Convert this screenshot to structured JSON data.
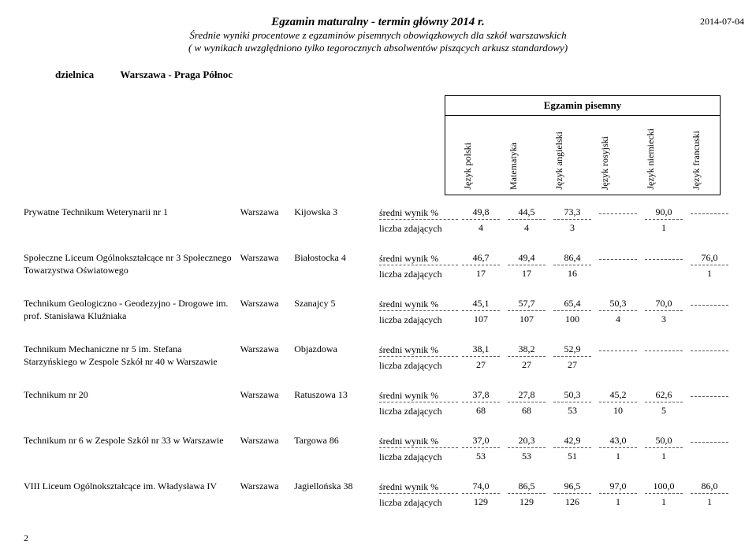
{
  "header": {
    "title_main": "Egzamin maturalny - termin główny 2014 r.",
    "title_sub1": "Średnie wyniki procentowe z egzaminów pisemnych obowiązkowych dla szkół warszawskich",
    "title_sub2": "( w wynikach uwzględniono tylko tegorocznych absolwentów piszących arkusz standardowy)",
    "date": "2014-07-04",
    "district_label": "dzielnica",
    "district_name": "Warszawa - Praga Północ",
    "exam_section": "Egzamin pisemny"
  },
  "columns": [
    "Język polski",
    "Matematyka",
    "Język angielski",
    "Język rosyjski",
    "Język niemiecki",
    "Język francuski"
  ],
  "label_avg": "średni wynik %",
  "label_count": "liczba zdających",
  "schools": [
    {
      "name": "Prywatne Technikum Weterynarii nr 1",
      "city": "Warszawa",
      "street": "Kijowska 3",
      "avg": [
        "49,8",
        "44,5",
        "73,3",
        "",
        "90,0",
        ""
      ],
      "count": [
        "4",
        "4",
        "3",
        "",
        "1",
        ""
      ]
    },
    {
      "name": "Społeczne Liceum Ogólnokształcące nr 3 Społecznego Towarzystwa Oświatowego",
      "city": "Warszawa",
      "street": "Białostocka 4",
      "avg": [
        "46,7",
        "49,4",
        "86,4",
        "",
        "",
        "76,0"
      ],
      "count": [
        "17",
        "17",
        "16",
        "",
        "",
        "1"
      ]
    },
    {
      "name": "Technikum Geologiczno - Geodezyjno - Drogowe im. prof. Stanisława Kluźniaka",
      "city": "Warszawa",
      "street": "Szanajcy 5",
      "avg": [
        "45,1",
        "57,7",
        "65,4",
        "50,3",
        "70,0",
        ""
      ],
      "count": [
        "107",
        "107",
        "100",
        "4",
        "3",
        ""
      ]
    },
    {
      "name": "Technikum Mechaniczne nr 5 im. Stefana Starzyńskiego w Zespole Szkół nr 40 w Warszawie",
      "city": "Warszawa",
      "street": "Objazdowa",
      "avg": [
        "38,1",
        "38,2",
        "52,9",
        "",
        "",
        ""
      ],
      "count": [
        "27",
        "27",
        "27",
        "",
        "",
        ""
      ]
    },
    {
      "name": "Technikum nr 20",
      "city": "Warszawa",
      "street": "Ratuszowa 13",
      "avg": [
        "37,8",
        "27,8",
        "50,3",
        "45,2",
        "62,6",
        ""
      ],
      "count": [
        "68",
        "68",
        "53",
        "10",
        "5",
        ""
      ]
    },
    {
      "name": "Technikum nr 6 w Zespole Szkół nr 33 w Warszawie",
      "city": "Warszawa",
      "street": "Targowa 86",
      "avg": [
        "37,0",
        "20,3",
        "42,9",
        "43,0",
        "50,0",
        ""
      ],
      "count": [
        "53",
        "53",
        "51",
        "1",
        "1",
        ""
      ]
    },
    {
      "name": "VIII Liceum Ogólnokształcące im. Władysława IV",
      "city": "Warszawa",
      "street": "Jagiellońska 38",
      "avg": [
        "74,0",
        "86,5",
        "96,5",
        "97,0",
        "100,0",
        "86,0"
      ],
      "count": [
        "129",
        "129",
        "126",
        "1",
        "1",
        "1"
      ]
    }
  ],
  "page_number": "2"
}
